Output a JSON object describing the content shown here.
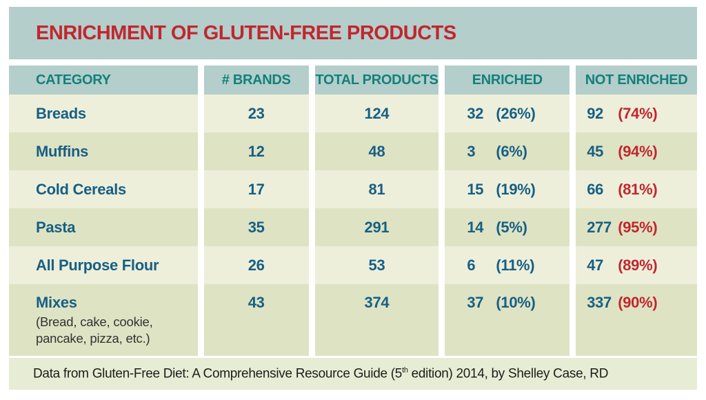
{
  "title": "ENRICHMENT OF GLUTEN-FREE PRODUCTS",
  "colors": {
    "title_red": "#c2262e",
    "header_teal": "#13807a",
    "data_blue": "#175f84",
    "band_background": "#b3cecb",
    "row_light": "#edefdb",
    "row_dark": "#dee3c4",
    "footer_background": "#e7ecd4"
  },
  "chart_data": {
    "type": "table",
    "title": "ENRICHMENT OF GLUTEN-FREE PRODUCTS",
    "columns": [
      "CATEGORY",
      "# BRANDS",
      "TOTAL PRODUCTS",
      "ENRICHED",
      "NOT ENRICHED"
    ],
    "rows": [
      {
        "category": "Breads",
        "note": "",
        "brands": "23",
        "total_products": "124",
        "enriched_count": "32",
        "enriched_pct": "(26%)",
        "not_enriched_count": "92",
        "not_enriched_pct": "(74%)"
      },
      {
        "category": "Muffins",
        "note": "",
        "brands": "12",
        "total_products": "48",
        "enriched_count": "3",
        "enriched_pct": "(6%)",
        "not_enriched_count": "45",
        "not_enriched_pct": "(94%)"
      },
      {
        "category": "Cold Cereals",
        "note": "",
        "brands": "17",
        "total_products": "81",
        "enriched_count": "15",
        "enriched_pct": "(19%)",
        "not_enriched_count": "66",
        "not_enriched_pct": "(81%)"
      },
      {
        "category": "Pasta",
        "note": "",
        "brands": "35",
        "total_products": "291",
        "enriched_count": "14",
        "enriched_pct": "(5%)",
        "not_enriched_count": "277",
        "not_enriched_pct": "(95%)"
      },
      {
        "category": "All Purpose Flour",
        "note": "",
        "brands": "26",
        "total_products": "53",
        "enriched_count": "6",
        "enriched_pct": "(11%)",
        "not_enriched_count": "47",
        "not_enriched_pct": "(89%)"
      },
      {
        "category": "Mixes",
        "note": "(Bread, cake, cookie, pancake, pizza, etc.)",
        "brands": "43",
        "total_products": "374",
        "enriched_count": "37",
        "enriched_pct": "(10%)",
        "not_enriched_count": "337",
        "not_enriched_pct": "(90%)"
      }
    ],
    "footer": {
      "pre": "Data from Gluten-Free Diet: A Comprehensive Resource Guide (5",
      "sup": "th",
      "post": " edition) 2014, by Shelley Case, RD"
    }
  }
}
